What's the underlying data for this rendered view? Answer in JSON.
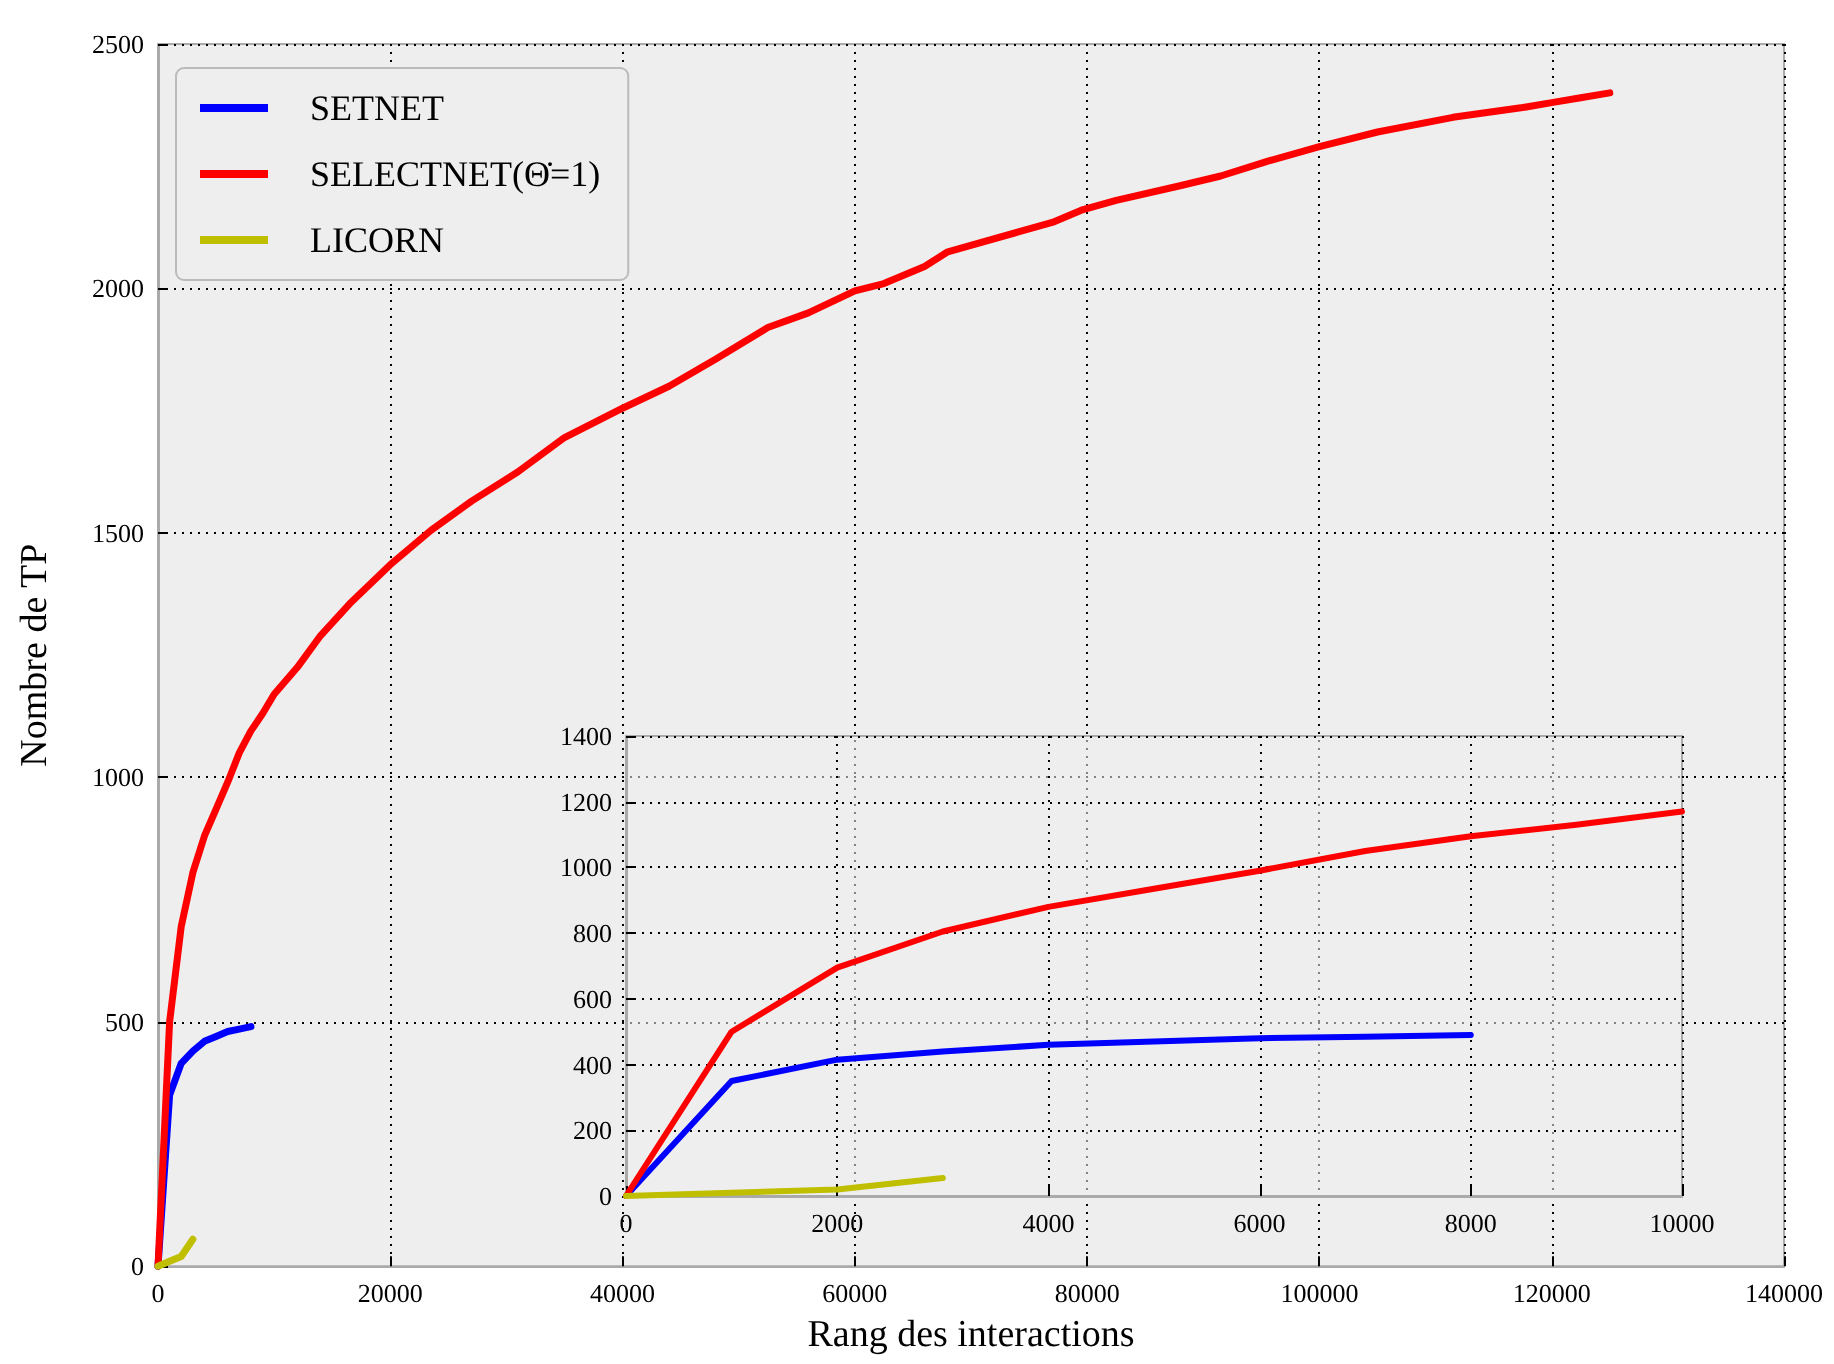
{
  "chart_data": [
    {
      "type": "line",
      "xlabel": "Rang des interactions",
      "ylabel": "Nombre de TP",
      "xlim": [
        0,
        140000
      ],
      "xticks": [
        0,
        20000,
        40000,
        60000,
        80000,
        100000,
        120000,
        140000
      ],
      "ylim": [
        0,
        2500
      ],
      "yticks": [
        0,
        500,
        1000,
        1500,
        2000,
        2500
      ],
      "grid": true,
      "legend": "top left",
      "series": [
        {
          "name": "SETNET",
          "color": "#0000ff",
          "x": [
            0,
            1000,
            2000,
            3000,
            4000,
            5000,
            6000,
            7000,
            8000
          ],
          "values": [
            0,
            350,
            415,
            440,
            460,
            470,
            480,
            485,
            490
          ]
        },
        {
          "name": "SELECTNET(Θ̇=1)",
          "color": "#ff0000",
          "x": [
            0,
            1000,
            2000,
            3000,
            4000,
            5000,
            6000,
            7000,
            8000,
            9000,
            10000,
            12000,
            14000,
            16500,
            20000,
            23500,
            27000,
            31000,
            35000,
            40000,
            44000,
            48000,
            52500,
            56000,
            60000,
            62500,
            66000,
            68000,
            74000,
            77000,
            79500,
            82500,
            88000,
            91500,
            95500,
            100000,
            105000,
            111500,
            117500,
            120000,
            122500,
            125000
          ],
          "values": [
            0,
            500,
            695,
            805,
            880,
            935,
            990,
            1050,
            1095,
            1130,
            1170,
            1225,
            1290,
            1355,
            1435,
            1505,
            1565,
            1625,
            1695,
            1755,
            1800,
            1855,
            1920,
            1950,
            1995,
            2010,
            2045,
            2075,
            2115,
            2135,
            2160,
            2180,
            2210,
            2230,
            2260,
            2290,
            2320,
            2350,
            2370,
            2380,
            2390,
            2400
          ]
        },
        {
          "name": "LICORN",
          "color": "#bfbf00",
          "x": [
            0,
            1000,
            2000,
            3000
          ],
          "values": [
            0,
            10,
            20,
            55
          ]
        }
      ]
    },
    {
      "type": "line",
      "xlim": [
        0,
        10000
      ],
      "xticks": [
        0,
        2000,
        4000,
        6000,
        8000,
        10000
      ],
      "ylim": [
        0,
        1400
      ],
      "yticks": [
        0,
        200,
        400,
        600,
        800,
        1000,
        1200,
        1400
      ],
      "grid": true,
      "series": [
        {
          "color": "#0000ff",
          "x": [
            0,
            1000,
            2000,
            3000,
            4000,
            5000,
            6000,
            7000,
            8000
          ],
          "values": [
            0,
            350,
            415,
            440,
            460,
            470,
            480,
            485,
            490
          ]
        },
        {
          "color": "#ff0000",
          "x": [
            0,
            1000,
            2000,
            3000,
            4000,
            5000,
            6000,
            7000,
            8000,
            9000,
            10000
          ],
          "values": [
            0,
            500,
            695,
            805,
            880,
            935,
            990,
            1050,
            1095,
            1130,
            1170
          ]
        },
        {
          "color": "#bfbf00",
          "x": [
            0,
            1000,
            2000,
            3000
          ],
          "values": [
            0,
            10,
            20,
            55
          ]
        }
      ]
    }
  ]
}
